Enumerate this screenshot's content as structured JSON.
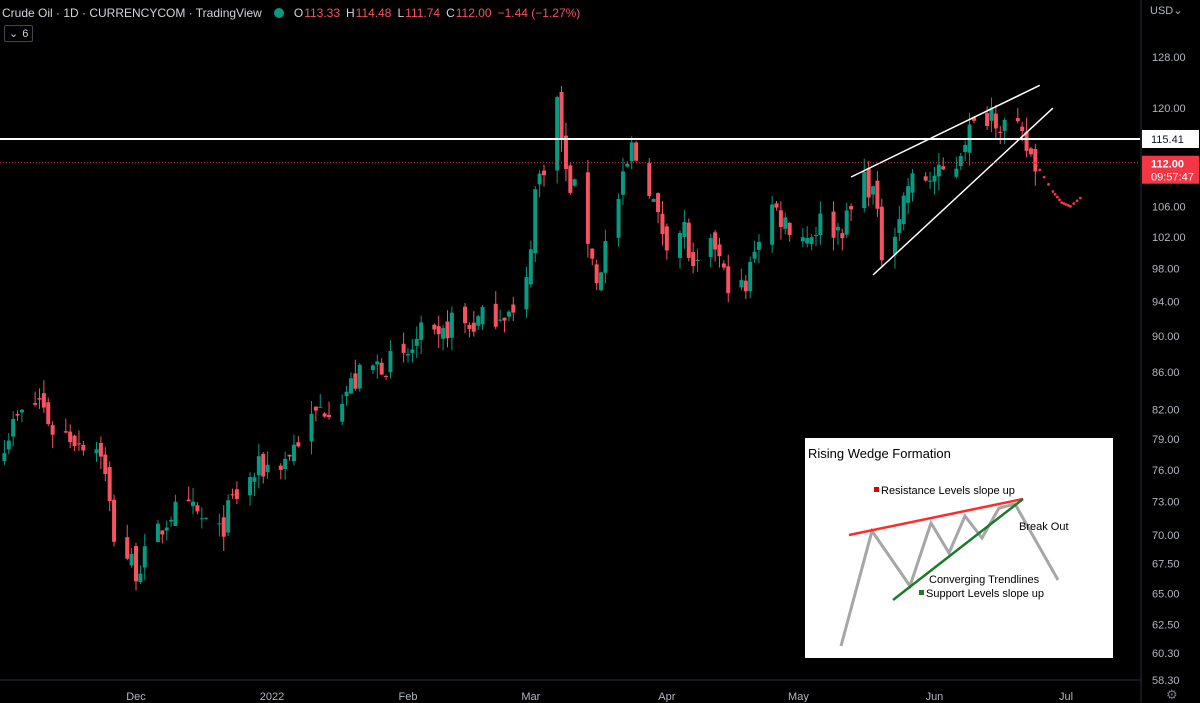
{
  "header": {
    "title": "Crude Oil · 1D · CURRENCYCOM · TradingView",
    "o_label": "O",
    "o_value": "113.33",
    "h_label": "H",
    "h_value": "114.48",
    "l_label": "L",
    "l_value": "111.74",
    "c_label": "C",
    "c_value": "112.00",
    "change": "−1.44 (−1.27%)"
  },
  "indicator_badge": "6",
  "currency_label": "USD",
  "colors": {
    "up": "#089981",
    "down": "#f7525f",
    "accent": "#f23645"
  },
  "chart_data": {
    "type": "candlestick",
    "y_axis": {
      "scale": "log",
      "range": [
        58.3,
        132
      ],
      "tick_labels": [
        "128.00",
        "120.00",
        "115.41",
        "112.00",
        "106.00",
        "102.00",
        "98.00",
        "94.00",
        "90.00",
        "86.00",
        "82.00",
        "79.00",
        "76.00",
        "73.00",
        "70.00",
        "67.50",
        "65.00",
        "62.50",
        "60.30",
        "58.30"
      ]
    },
    "x_axis": {
      "tick_labels": [
        "Dec",
        "2022",
        "Feb",
        "Mar",
        "Apr",
        "May",
        "Jun",
        "Jul"
      ]
    },
    "price_label": {
      "value": "112.00",
      "countdown": "09:57:47"
    },
    "horizontal_level": {
      "value": 115.41,
      "label": "115.41"
    },
    "anchors": [
      {
        "d": "2021-11-01",
        "p": 79
      },
      {
        "d": "2021-11-04",
        "p": 81
      },
      {
        "d": "2021-11-09",
        "p": 83
      },
      {
        "d": "2021-11-12",
        "p": 80
      },
      {
        "d": "2021-11-18",
        "p": 79
      },
      {
        "d": "2021-11-23",
        "p": 78
      },
      {
        "d": "2021-11-26",
        "p": 70
      },
      {
        "d": "2021-12-01",
        "p": 67
      },
      {
        "d": "2021-12-03",
        "p": 68
      },
      {
        "d": "2021-12-06",
        "p": 70
      },
      {
        "d": "2021-12-09",
        "p": 72
      },
      {
        "d": "2021-12-14",
        "p": 72
      },
      {
        "d": "2021-12-20",
        "p": 70
      },
      {
        "d": "2021-12-23",
        "p": 73
      },
      {
        "d": "2021-12-29",
        "p": 76
      },
      {
        "d": "2022-01-04",
        "p": 77
      },
      {
        "d": "2022-01-07",
        "p": 79
      },
      {
        "d": "2022-01-12",
        "p": 82
      },
      {
        "d": "2022-01-18",
        "p": 84
      },
      {
        "d": "2022-01-21",
        "p": 85.5
      },
      {
        "d": "2022-01-26",
        "p": 87
      },
      {
        "d": "2022-01-31",
        "p": 87
      },
      {
        "d": "2022-02-04",
        "p": 90
      },
      {
        "d": "2022-02-08",
        "p": 89
      },
      {
        "d": "2022-02-11",
        "p": 92
      },
      {
        "d": "2022-02-15",
        "p": 91
      },
      {
        "d": "2022-02-18",
        "p": 92
      },
      {
        "d": "2022-02-23",
        "p": 93
      },
      {
        "d": "2022-02-25",
        "p": 92
      },
      {
        "d": "2022-02-28",
        "p": 96
      },
      {
        "d": "2022-03-02",
        "p": 108
      },
      {
        "d": "2022-03-04",
        "p": 112
      },
      {
        "d": "2022-03-07",
        "p": 121
      },
      {
        "d": "2022-03-09",
        "p": 110
      },
      {
        "d": "2022-03-11",
        "p": 108
      },
      {
        "d": "2022-03-15",
        "p": 100
      },
      {
        "d": "2022-03-16",
        "p": 96
      },
      {
        "d": "2022-03-18",
        "p": 101
      },
      {
        "d": "2022-03-22",
        "p": 109
      },
      {
        "d": "2022-03-24",
        "p": 114
      },
      {
        "d": "2022-03-28",
        "p": 109
      },
      {
        "d": "2022-03-30",
        "p": 104
      },
      {
        "d": "2022-04-01",
        "p": 102
      },
      {
        "d": "2022-04-05",
        "p": 103
      },
      {
        "d": "2022-04-07",
        "p": 97
      },
      {
        "d": "2022-04-12",
        "p": 101
      },
      {
        "d": "2022-04-14",
        "p": 97
      },
      {
        "d": "2022-04-19",
        "p": 95
      },
      {
        "d": "2022-04-21",
        "p": 101
      },
      {
        "d": "2022-04-25",
        "p": 106
      },
      {
        "d": "2022-04-28",
        "p": 104
      },
      {
        "d": "2022-05-03",
        "p": 102
      },
      {
        "d": "2022-05-06",
        "p": 104
      },
      {
        "d": "2022-05-10",
        "p": 103
      },
      {
        "d": "2022-05-12",
        "p": 104
      },
      {
        "d": "2022-05-16",
        "p": 110
      },
      {
        "d": "2022-05-18",
        "p": 108
      },
      {
        "d": "2022-05-20",
        "p": 100
      },
      {
        "d": "2022-05-24",
        "p": 105
      },
      {
        "d": "2022-05-26",
        "p": 109
      },
      {
        "d": "2022-05-31",
        "p": 110
      },
      {
        "d": "2022-06-02",
        "p": 110
      },
      {
        "d": "2022-06-06",
        "p": 112
      },
      {
        "d": "2022-06-08",
        "p": 116
      },
      {
        "d": "2022-06-10",
        "p": 117
      },
      {
        "d": "2022-06-14",
        "p": 120
      },
      {
        "d": "2022-06-16",
        "p": 118
      },
      {
        "d": "2022-06-20",
        "p": 116
      },
      {
        "d": "2022-06-22",
        "p": 114
      },
      {
        "d": "2022-06-24",
        "p": 112
      }
    ],
    "wedge_lines": [
      {
        "from": {
          "d": "2022-05-13",
          "p": 110
        },
        "to": {
          "d": "2022-06-25",
          "p": 123.5
        }
      },
      {
        "from": {
          "d": "2022-05-18",
          "p": 97.2
        },
        "to": {
          "d": "2022-06-28",
          "p": 120
        }
      }
    ],
    "projection": [
      {
        "d": "2022-06-24",
        "p": 112
      },
      {
        "d": "2022-06-28",
        "p": 108
      },
      {
        "d": "2022-06-30",
        "p": 106.5
      },
      {
        "d": "2022-07-02",
        "p": 106
      },
      {
        "d": "2022-07-05",
        "p": 107.5
      }
    ]
  },
  "inset": {
    "title": "Rising Wedge Formation",
    "resistance_label": "Resistance Levels slope up",
    "breakout_label": "Break Out",
    "converging_label": "Converging Trendlines",
    "support_label": "Support Levels slope up"
  }
}
